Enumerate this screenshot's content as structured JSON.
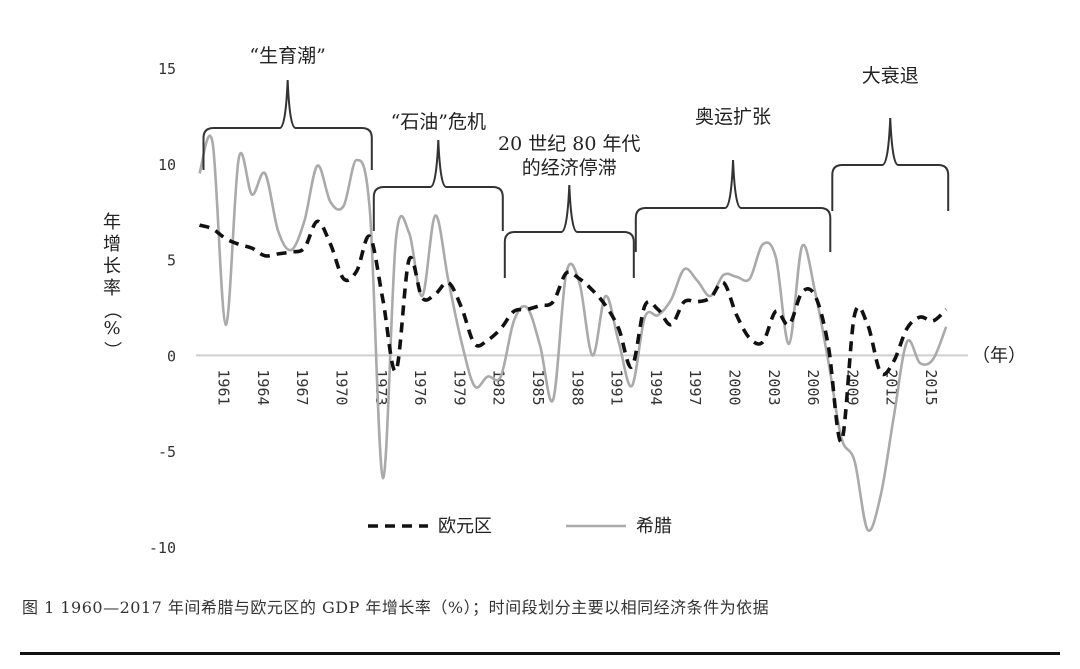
{
  "chart_data": {
    "type": "line",
    "x_unit_label": "（年）",
    "ylabel": "年增长率（%）",
    "ylim": [
      -10,
      15
    ],
    "yticks": [
      "15",
      "10",
      "5",
      "0",
      "-5",
      "-10"
    ],
    "xlim": [
      1960,
      2018
    ],
    "xticks": [
      "1961",
      "1964",
      "1967",
      "1970",
      "1973",
      "1976",
      "1979",
      "1982",
      "1985",
      "1988",
      "1991",
      "1994",
      "1997",
      "2000",
      "2003",
      "2006",
      "2009",
      "2012",
      "2015"
    ],
    "series": [
      {
        "name": "欧元区",
        "style": "dashed",
        "color": "#111111",
        "points": [
          [
            1960,
            6.8
          ],
          [
            1961,
            6.6
          ],
          [
            1962,
            6.1
          ],
          [
            1963,
            5.8
          ],
          [
            1964,
            5.6
          ],
          [
            1965,
            5.2
          ],
          [
            1966,
            5.3
          ],
          [
            1967,
            5.4
          ],
          [
            1968,
            5.6
          ],
          [
            1969,
            7.0
          ],
          [
            1970,
            5.8
          ],
          [
            1971,
            4.0
          ],
          [
            1972,
            4.4
          ],
          [
            1973,
            6.2
          ],
          [
            1974,
            2.9
          ],
          [
            1975,
            -0.8
          ],
          [
            1976,
            5.0
          ],
          [
            1977,
            3.0
          ],
          [
            1978,
            3.2
          ],
          [
            1979,
            3.8
          ],
          [
            1980,
            2.5
          ],
          [
            1981,
            0.6
          ],
          [
            1982,
            0.8
          ],
          [
            1983,
            1.4
          ],
          [
            1984,
            2.3
          ],
          [
            1985,
            2.4
          ],
          [
            1986,
            2.6
          ],
          [
            1987,
            2.8
          ],
          [
            1988,
            4.3
          ],
          [
            1989,
            4.0
          ],
          [
            1990,
            3.4
          ],
          [
            1991,
            2.6
          ],
          [
            1992,
            1.4
          ],
          [
            1993,
            -0.6
          ],
          [
            1994,
            2.6
          ],
          [
            1995,
            2.4
          ],
          [
            1996,
            1.6
          ],
          [
            1997,
            2.8
          ],
          [
            1998,
            2.8
          ],
          [
            1999,
            3.0
          ],
          [
            2000,
            3.8
          ],
          [
            2001,
            2.1
          ],
          [
            2002,
            0.9
          ],
          [
            2003,
            0.7
          ],
          [
            2004,
            2.3
          ],
          [
            2005,
            1.6
          ],
          [
            2006,
            3.3
          ],
          [
            2007,
            3.1
          ],
          [
            2008,
            0.5
          ],
          [
            2009,
            -4.5
          ],
          [
            2010,
            2.1
          ],
          [
            2011,
            1.6
          ],
          [
            2012,
            -0.9
          ],
          [
            2013,
            -0.3
          ],
          [
            2014,
            1.4
          ],
          [
            2015,
            2.0
          ],
          [
            2016,
            1.8
          ],
          [
            2017,
            2.4
          ]
        ]
      },
      {
        "name": "希腊",
        "style": "solid",
        "color": "#aaaaaa",
        "points": [
          [
            1960,
            9.5
          ],
          [
            1961,
            11.1
          ],
          [
            1962,
            1.6
          ],
          [
            1963,
            10.3
          ],
          [
            1964,
            8.4
          ],
          [
            1965,
            9.5
          ],
          [
            1966,
            6.5
          ],
          [
            1967,
            5.5
          ],
          [
            1968,
            7.0
          ],
          [
            1969,
            9.9
          ],
          [
            1970,
            8.0
          ],
          [
            1971,
            7.8
          ],
          [
            1972,
            10.2
          ],
          [
            1973,
            7.6
          ],
          [
            1974,
            -6.4
          ],
          [
            1975,
            6.1
          ],
          [
            1976,
            6.4
          ],
          [
            1977,
            3.1
          ],
          [
            1978,
            7.3
          ],
          [
            1979,
            3.9
          ],
          [
            1980,
            0.7
          ],
          [
            1981,
            -1.6
          ],
          [
            1982,
            -1.1
          ],
          [
            1983,
            -1.1
          ],
          [
            1984,
            1.8
          ],
          [
            1985,
            2.5
          ],
          [
            1986,
            0.5
          ],
          [
            1987,
            -2.3
          ],
          [
            1988,
            4.3
          ],
          [
            1989,
            3.8
          ],
          [
            1990,
            0.0
          ],
          [
            1991,
            3.1
          ],
          [
            1992,
            0.7
          ],
          [
            1993,
            -1.6
          ],
          [
            1994,
            2.0
          ],
          [
            1995,
            2.1
          ],
          [
            1996,
            2.9
          ],
          [
            1997,
            4.5
          ],
          [
            1998,
            3.9
          ],
          [
            1999,
            3.1
          ],
          [
            2000,
            4.2
          ],
          [
            2001,
            4.1
          ],
          [
            2002,
            4.0
          ],
          [
            2003,
            5.8
          ],
          [
            2004,
            5.1
          ],
          [
            2005,
            0.6
          ],
          [
            2006,
            5.7
          ],
          [
            2007,
            3.3
          ],
          [
            2008,
            -0.3
          ],
          [
            2009,
            -4.3
          ],
          [
            2010,
            -5.5
          ],
          [
            2011,
            -9.1
          ],
          [
            2012,
            -7.3
          ],
          [
            2013,
            -3.2
          ],
          [
            2014,
            0.7
          ],
          [
            2015,
            -0.4
          ],
          [
            2016,
            -0.2
          ],
          [
            2017,
            1.5
          ]
        ]
      }
    ],
    "annotations": [
      {
        "label": "“生育潮”",
        "start": 1960,
        "end": 1973
      },
      {
        "label": "“石油”危机",
        "start": 1973,
        "end": 1983
      },
      {
        "label": "20 世纪 80 年代\n的经济停滞",
        "start": 1983,
        "end": 1993
      },
      {
        "label": "奥运扩张",
        "start": 1993,
        "end": 2008
      },
      {
        "label": "大衰退",
        "start": 2008,
        "end": 2017
      }
    ],
    "legend": {
      "position": "bottom-center"
    }
  },
  "caption": "图 1  1960—2017 年间希腊与欧元区的 GDP 年增长率（%）；时间段划分主要以相同经济条件为依据"
}
